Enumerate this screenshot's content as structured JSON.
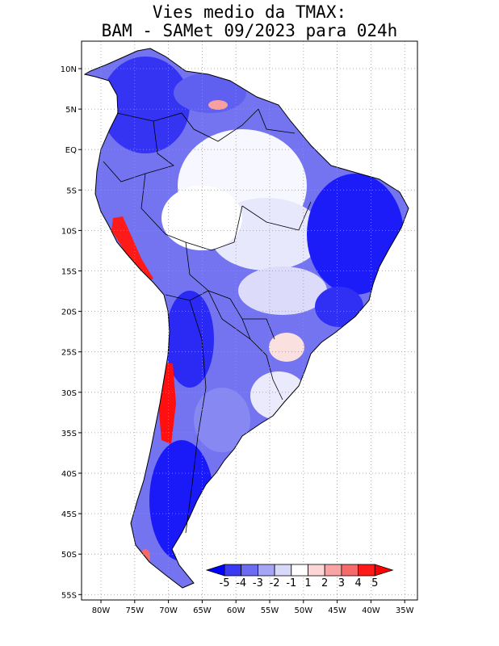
{
  "title_line1": "Vies medio da TMAX:",
  "title_line2": "BAM - SAMet 09/2023  para 024h",
  "lat_labels": [
    "10N",
    "5N",
    "EQ",
    "5S",
    "10S",
    "15S",
    "20S",
    "25S",
    "30S",
    "35S",
    "40S",
    "45S",
    "50S",
    "55S"
  ],
  "lon_labels": [
    "80W",
    "75W",
    "70W",
    "65W",
    "60W",
    "55W",
    "50W",
    "45W",
    "40W",
    "35W"
  ],
  "colorbar": {
    "labels": [
      "-5",
      "-4",
      "-3",
      "-2",
      "-1",
      "1",
      "2",
      "3",
      "4",
      "5"
    ],
    "colors": [
      "#0000ff",
      "#3a3af5",
      "#6c6cf3",
      "#a6a6f7",
      "#d8d8fb",
      "#ffffff",
      "#fcd6d6",
      "#f9a4a4",
      "#f56a6a",
      "#ff1a1a",
      "#ff0000"
    ]
  }
}
